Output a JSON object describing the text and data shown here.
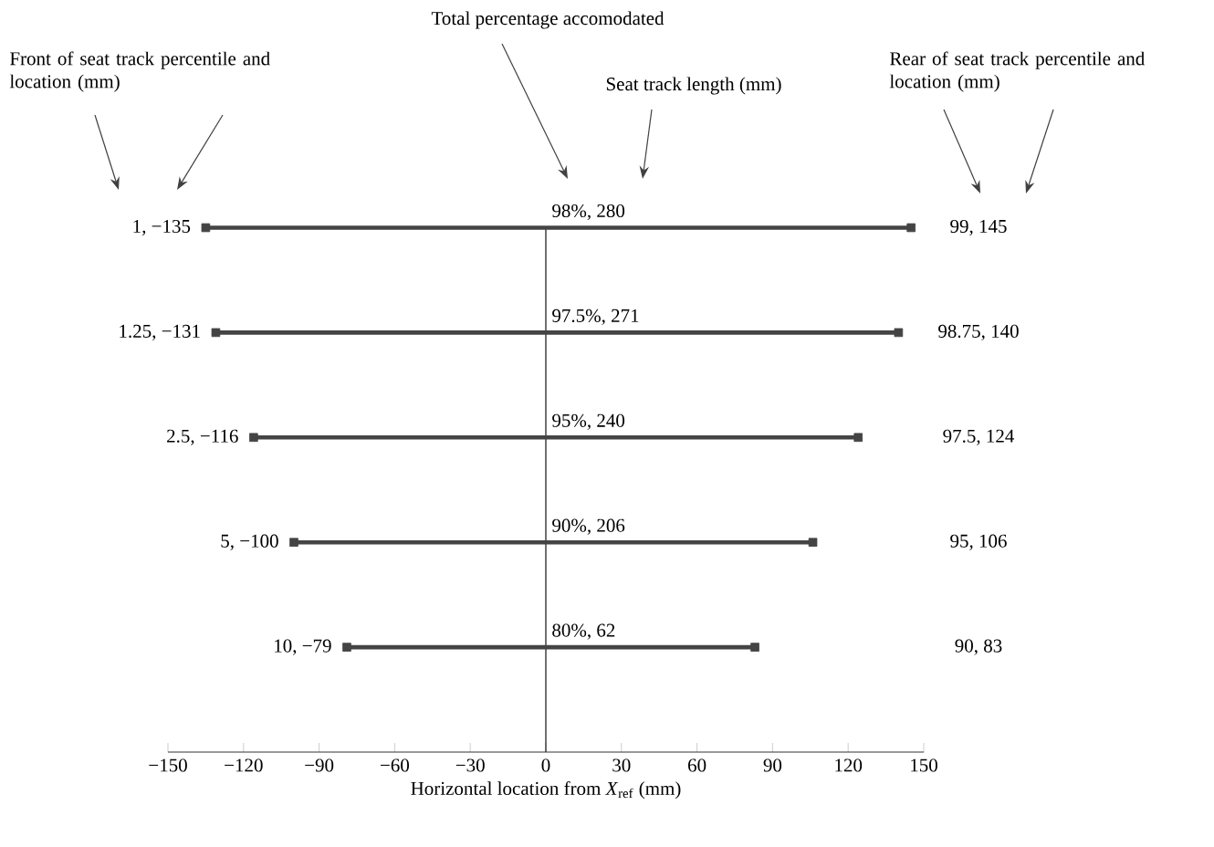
{
  "chart_data": {
    "type": "bar",
    "orientation": "horizontal",
    "categories": [
      "1, −135",
      "1.25, −131",
      "2.5, −116",
      "5, −100",
      "10, −79"
    ],
    "series": [
      {
        "color": "#444444",
        "base": [
          -135,
          -131,
          -116,
          -100,
          -79
        ],
        "values": [
          280,
          271,
          240,
          206,
          162
        ]
      },
      {
        "type": "scatter",
        "marker": "square",
        "color": "#444444",
        "x": [
          "1, −135",
          "1, −135",
          "1.25, −131",
          "1.25, −131",
          "2.5, −116",
          "2.5, −116",
          "5, −100",
          "5, −100",
          "10, −79",
          "10, −79"
        ],
        "values": [
          -135,
          145,
          -131,
          140,
          -116,
          124,
          -100,
          106,
          -79,
          83
        ]
      }
    ],
    "xlim": [
      -150,
      150
    ],
    "xticks": [
      {
        "value": -150,
        "label": "−150"
      },
      {
        "value": -120,
        "label": "−120"
      },
      {
        "value": -90,
        "label": "−90"
      },
      {
        "value": -60,
        "label": "−60"
      },
      {
        "value": -30,
        "label": "−30"
      },
      0,
      30,
      60,
      90,
      120,
      150
    ],
    "xlabel": "Horizontal location  from *X*$_{ref}$ (mm)",
    "ref_lines": [
      {
        "axis": "x",
        "value": 0,
        "color": "#333333"
      }
    ],
    "annotations": [
      "98%, 280",
      "97.5%, 271",
      "95%, 240",
      "90%, 206",
      "80%, 62",
      "99, 145",
      "98.75, 140",
      "97.5, 124",
      "95, 106",
      "90, 83",
      "Front of seat track percentile and location (mm)",
      "Total percentage accomodated",
      "Seat track length (mm)",
      "Rear of seat track percentile and location (mm)"
    ]
  }
}
